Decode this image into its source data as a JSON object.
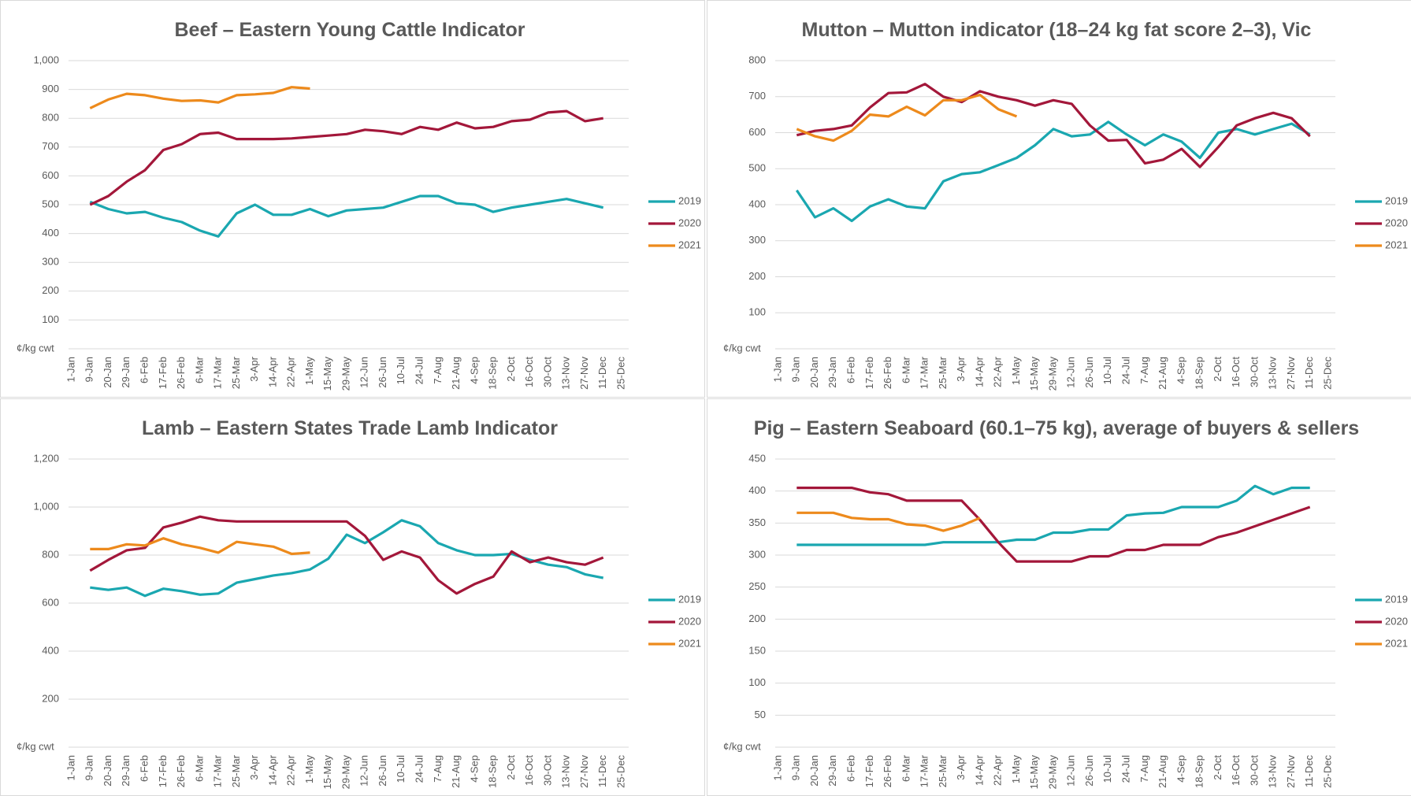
{
  "chart_data": [
    {
      "type": "line",
      "title": "Beef – Eastern Young Cattle Indicator",
      "y_unit": "¢/kg cwt",
      "categories": [
        "1-Jan",
        "9-Jan",
        "20-Jan",
        "29-Jan",
        "6-Feb",
        "17-Feb",
        "26-Feb",
        "6-Mar",
        "17-Mar",
        "25-Mar",
        "3-Apr",
        "14-Apr",
        "22-Apr",
        "1-May",
        "15-May",
        "29-May",
        "12-Jun",
        "26-Jun",
        "10-Jul",
        "24-Jul",
        "7-Aug",
        "21-Aug",
        "4-Sep",
        "18-Sep",
        "2-Oct",
        "16-Oct",
        "30-Oct",
        "13-Nov",
        "27-Nov",
        "11-Dec",
        "25-Dec"
      ],
      "series": [
        {
          "name": "2019",
          "color": "#1aa7b0",
          "values": [
            null,
            510,
            485,
            470,
            475,
            455,
            440,
            410,
            390,
            470,
            500,
            465,
            465,
            485,
            460,
            480,
            485,
            490,
            510,
            530,
            530,
            505,
            500,
            475,
            490,
            500,
            510,
            520,
            505,
            490,
            null
          ]
        },
        {
          "name": "2020",
          "color": "#a3173a",
          "values": [
            null,
            500,
            530,
            580,
            620,
            690,
            710,
            745,
            750,
            728,
            728,
            728,
            730,
            735,
            740,
            745,
            760,
            755,
            745,
            770,
            760,
            785,
            765,
            770,
            790,
            795,
            820,
            825,
            790,
            800,
            null
          ]
        },
        {
          "name": "2021",
          "color": "#ed8a1c",
          "values": [
            null,
            835,
            865,
            885,
            880,
            868,
            860,
            862,
            855,
            880,
            883,
            888,
            908,
            903,
            null,
            null,
            null,
            null,
            null,
            null,
            null,
            null,
            null,
            null,
            null,
            null,
            null,
            null,
            null,
            null,
            null
          ]
        }
      ],
      "ylim": [
        0,
        1000
      ],
      "yticks": [
        100,
        200,
        300,
        400,
        500,
        600,
        700,
        800,
        900,
        {
          "value": 1000,
          "label": "1,000"
        }
      ],
      "grid": true,
      "legend": "right"
    },
    {
      "type": "line",
      "title": "Mutton – Mutton indicator (18–24 kg fat score 2–3), Vic",
      "y_unit": "¢/kg cwt",
      "categories": [
        "1-Jan",
        "9-Jan",
        "20-Jan",
        "29-Jan",
        "6-Feb",
        "17-Feb",
        "26-Feb",
        "6-Mar",
        "17-Mar",
        "25-Mar",
        "3-Apr",
        "14-Apr",
        "22-Apr",
        "1-May",
        "15-May",
        "29-May",
        "12-Jun",
        "26-Jun",
        "10-Jul",
        "24-Jul",
        "7-Aug",
        "21-Aug",
        "4-Sep",
        "18-Sep",
        "2-Oct",
        "16-Oct",
        "30-Oct",
        "13-Nov",
        "27-Nov",
        "11-Dec",
        "25-Dec"
      ],
      "series": [
        {
          "name": "2019",
          "color": "#1aa7b0",
          "values": [
            null,
            440,
            365,
            390,
            355,
            395,
            415,
            395,
            390,
            465,
            485,
            490,
            510,
            530,
            565,
            610,
            590,
            595,
            630,
            595,
            565,
            595,
            575,
            530,
            600,
            610,
            595,
            610,
            625,
            595,
            null
          ]
        },
        {
          "name": "2020",
          "color": "#a3173a",
          "values": [
            null,
            593,
            605,
            610,
            620,
            670,
            710,
            712,
            735,
            700,
            685,
            715,
            700,
            690,
            675,
            690,
            680,
            620,
            578,
            580,
            515,
            525,
            555,
            505,
            560,
            620,
            640,
            655,
            640,
            590,
            null
          ]
        },
        {
          "name": "2021",
          "color": "#ed8a1c",
          "values": [
            null,
            610,
            590,
            578,
            605,
            650,
            645,
            672,
            648,
            690,
            690,
            705,
            665,
            645,
            null,
            null,
            null,
            null,
            null,
            null,
            null,
            null,
            null,
            null,
            null,
            null,
            null,
            null,
            null,
            null,
            null
          ]
        }
      ],
      "ylim": [
        0,
        800
      ],
      "yticks": [
        100,
        200,
        300,
        400,
        500,
        600,
        700,
        800
      ],
      "grid": true,
      "legend": "right"
    },
    {
      "type": "line",
      "title": "Lamb – Eastern States Trade Lamb Indicator",
      "y_unit": "¢/kg cwt",
      "categories": [
        "1-Jan",
        "9-Jan",
        "20-Jan",
        "29-Jan",
        "6-Feb",
        "17-Feb",
        "26-Feb",
        "6-Mar",
        "17-Mar",
        "25-Mar",
        "3-Apr",
        "14-Apr",
        "22-Apr",
        "1-May",
        "15-May",
        "29-May",
        "12-Jun",
        "26-Jun",
        "10-Jul",
        "24-Jul",
        "7-Aug",
        "21-Aug",
        "4-Sep",
        "18-Sep",
        "2-Oct",
        "16-Oct",
        "30-Oct",
        "13-Nov",
        "27-Nov",
        "11-Dec",
        "25-Dec"
      ],
      "series": [
        {
          "name": "2019",
          "color": "#1aa7b0",
          "values": [
            null,
            665,
            655,
            665,
            630,
            660,
            650,
            635,
            640,
            685,
            700,
            715,
            725,
            740,
            785,
            885,
            850,
            895,
            945,
            920,
            850,
            820,
            800,
            800,
            805,
            780,
            760,
            750,
            720,
            705,
            null
          ]
        },
        {
          "name": "2020",
          "color": "#a3173a",
          "values": [
            null,
            735,
            780,
            820,
            830,
            915,
            935,
            960,
            945,
            940,
            940,
            940,
            940,
            940,
            940,
            940,
            880,
            780,
            815,
            790,
            695,
            640,
            680,
            710,
            815,
            770,
            790,
            770,
            760,
            790,
            null
          ]
        },
        {
          "name": "2021",
          "color": "#ed8a1c",
          "values": [
            null,
            825,
            825,
            845,
            840,
            870,
            845,
            830,
            810,
            855,
            845,
            835,
            805,
            810,
            null,
            null,
            null,
            null,
            null,
            null,
            null,
            null,
            null,
            null,
            null,
            null,
            null,
            null,
            null,
            null,
            null
          ]
        }
      ],
      "ylim": [
        0,
        1200
      ],
      "yticks": [
        200,
        400,
        600,
        800,
        {
          "value": 1000,
          "label": "1,000"
        },
        {
          "value": 1200,
          "label": "1,200"
        }
      ],
      "grid": true,
      "legend": "right"
    },
    {
      "type": "line",
      "title": "Pig – Eastern Seaboard (60.1–75 kg), average of buyers & sellers",
      "y_unit": "¢/kg cwt",
      "categories": [
        "1-Jan",
        "9-Jan",
        "20-Jan",
        "29-Jan",
        "6-Feb",
        "17-Feb",
        "26-Feb",
        "6-Mar",
        "17-Mar",
        "25-Mar",
        "3-Apr",
        "14-Apr",
        "22-Apr",
        "1-May",
        "15-May",
        "29-May",
        "12-Jun",
        "26-Jun",
        "10-Jul",
        "24-Jul",
        "7-Aug",
        "21-Aug",
        "4-Sep",
        "18-Sep",
        "2-Oct",
        "16-Oct",
        "30-Oct",
        "13-Nov",
        "27-Nov",
        "11-Dec",
        "25-Dec"
      ],
      "series": [
        {
          "name": "2019",
          "color": "#1aa7b0",
          "values": [
            null,
            316,
            316,
            316,
            316,
            316,
            316,
            316,
            316,
            320,
            320,
            320,
            320,
            324,
            324,
            335,
            335,
            340,
            340,
            362,
            365,
            366,
            375,
            375,
            375,
            385,
            408,
            395,
            405,
            405,
            null
          ]
        },
        {
          "name": "2020",
          "color": "#a3173a",
          "values": [
            null,
            405,
            405,
            405,
            405,
            398,
            395,
            385,
            385,
            385,
            385,
            355,
            320,
            290,
            290,
            290,
            290,
            298,
            298,
            308,
            308,
            316,
            316,
            316,
            328,
            335,
            345,
            355,
            365,
            375,
            null
          ]
        },
        {
          "name": "2021",
          "color": "#ed8a1c",
          "values": [
            null,
            366,
            366,
            366,
            358,
            356,
            356,
            348,
            346,
            338,
            346,
            358,
            null,
            null,
            null,
            null,
            null,
            null,
            null,
            null,
            null,
            null,
            null,
            null,
            null,
            null,
            null,
            null,
            null,
            null,
            null
          ]
        }
      ],
      "ylim": [
        0,
        450
      ],
      "yticks": [
        50,
        100,
        150,
        200,
        250,
        300,
        350,
        400,
        450
      ],
      "grid": true,
      "legend": "right"
    }
  ]
}
